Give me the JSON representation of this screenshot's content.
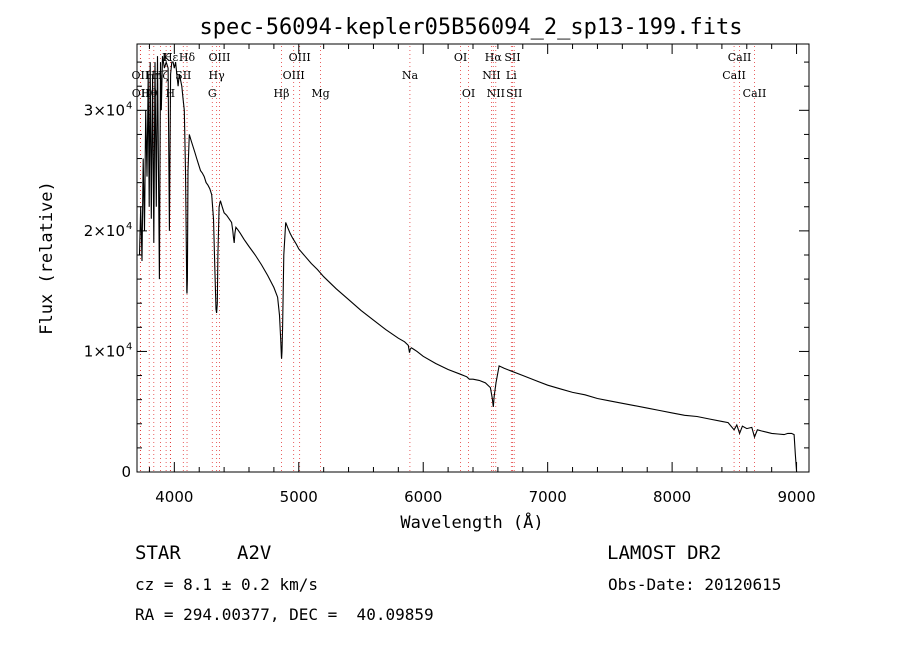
{
  "chart_data": {
    "type": "line",
    "title": "spec-56094-kepler05B56094_2_sp13-199.fits",
    "xlabel": "Wavelength (Å)",
    "ylabel": "Flux (relative)",
    "xlim": [
      3700,
      9100
    ],
    "ylim": [
      0,
      35500
    ],
    "x_ticks": [
      {
        "value": 4000,
        "label": "4000"
      },
      {
        "value": 5000,
        "label": "5000"
      },
      {
        "value": 6000,
        "label": "6000"
      },
      {
        "value": 7000,
        "label": "7000"
      },
      {
        "value": 8000,
        "label": "8000"
      },
      {
        "value": 9000,
        "label": "9000"
      }
    ],
    "y_ticks": [
      {
        "value": 0,
        "mant": "0",
        "exp": ""
      },
      {
        "value": 10000,
        "mant": "1×10",
        "exp": "4"
      },
      {
        "value": 20000,
        "mant": "2×10",
        "exp": "4"
      },
      {
        "value": 30000,
        "mant": "3×10",
        "exp": "4"
      }
    ],
    "series": [
      {
        "name": "spectrum",
        "x": [
          3720,
          3730,
          3740,
          3750,
          3760,
          3770,
          3780,
          3790,
          3798,
          3806,
          3815,
          3825,
          3835,
          3845,
          3855,
          3865,
          3880,
          3889,
          3895,
          3905,
          3920,
          3935,
          3950,
          3960,
          3970,
          3980,
          3990,
          4000,
          4010,
          4020,
          4030,
          4040,
          4050,
          4060,
          4070,
          4080,
          4090,
          4100,
          4102,
          4105,
          4110,
          4120,
          4135,
          4150,
          4165,
          4180,
          4195,
          4210,
          4225,
          4240,
          4255,
          4270,
          4285,
          4300,
          4315,
          4325,
          4335,
          4340,
          4345,
          4350,
          4360,
          4370,
          4385,
          4400,
          4420,
          4440,
          4460,
          4470,
          4475,
          4481,
          4487,
          4495,
          4510,
          4530,
          4560,
          4600,
          4650,
          4700,
          4750,
          4800,
          4830,
          4845,
          4855,
          4860,
          4862,
          4865,
          4870,
          4880,
          4895,
          4910,
          4930,
          4950,
          4980,
          5000,
          5050,
          5100,
          5150,
          5200,
          5300,
          5400,
          5500,
          5600,
          5700,
          5800,
          5850,
          5880,
          5890,
          5896,
          5905,
          5920,
          5950,
          6000,
          6100,
          6200,
          6300,
          6350,
          6370,
          6400,
          6450,
          6500,
          6540,
          6555,
          6563,
          6570,
          6585,
          6610,
          6650,
          6700,
          6800,
          6900,
          7000,
          7100,
          7200,
          7300,
          7400,
          7500,
          7600,
          7700,
          7800,
          7900,
          8000,
          8100,
          8200,
          8300,
          8400,
          8450,
          8498,
          8520,
          8542,
          8565,
          8600,
          8640,
          8662,
          8685,
          8720,
          8760,
          8800,
          8850,
          8900,
          8930,
          8960,
          8980,
          8990,
          9000
        ],
        "values": [
          18000,
          22000,
          17500,
          26000,
          20000,
          30000,
          24500,
          33000,
          22000,
          34000,
          21000,
          33000,
          19000,
          34000,
          22000,
          34500,
          16000,
          34000,
          30000,
          34500,
          33500,
          34000,
          33500,
          20000,
          33000,
          34000,
          34000,
          33500,
          34000,
          33000,
          32000,
          33000,
          32500,
          32000,
          31000,
          30000,
          25000,
          15000,
          14800,
          16000,
          25000,
          28000,
          27500,
          27000,
          26500,
          26000,
          25500,
          25000,
          24800,
          24500,
          24000,
          23800,
          23500,
          23000,
          21000,
          17000,
          13500,
          13200,
          14000,
          18000,
          22000,
          22500,
          22000,
          21500,
          21300,
          21000,
          20700,
          20000,
          19500,
          19000,
          19800,
          20300,
          20100,
          19800,
          19300,
          18700,
          18000,
          17200,
          16300,
          15300,
          14500,
          13000,
          11000,
          9600,
          9400,
          10000,
          12000,
          18000,
          20700,
          20300,
          19800,
          19400,
          18900,
          18500,
          17900,
          17300,
          16800,
          16200,
          15200,
          14300,
          13400,
          12600,
          11800,
          11100,
          10800,
          10500,
          9900,
          10200,
          10300,
          10200,
          10000,
          9600,
          9000,
          8500,
          8100,
          7900,
          7700,
          7700,
          7600,
          7400,
          7000,
          6100,
          5400,
          6300,
          7400,
          8800,
          8600,
          8400,
          8000,
          7600,
          7200,
          6900,
          6600,
          6400,
          6100,
          5900,
          5700,
          5500,
          5300,
          5100,
          4900,
          4700,
          4600,
          4400,
          4200,
          4100,
          3500,
          3900,
          3200,
          3800,
          3600,
          3700,
          2900,
          3500,
          3400,
          3300,
          3200,
          3150,
          3100,
          3200,
          3200,
          3100,
          1500,
          0
        ]
      }
    ],
    "lines": [
      {
        "name": "Hε",
        "wl": 3970,
        "row": 0
      },
      {
        "name": "K",
        "wl": 3934,
        "row": 0
      },
      {
        "name": "Hδ",
        "wl": 4102,
        "row": 0
      },
      {
        "name": "OIII",
        "wl": 4363,
        "row": 0
      },
      {
        "name": "OIII",
        "wl": 5007,
        "row": 0
      },
      {
        "name": "OI",
        "wl": 6300,
        "row": 0
      },
      {
        "name": "Hα",
        "wl": 6563,
        "row": 0
      },
      {
        "name": "SII",
        "wl": 6717,
        "row": 0
      },
      {
        "name": "CaII",
        "wl": 8542,
        "row": 0
      },
      {
        "name": "OII",
        "wl": 3727,
        "row": 1
      },
      {
        "name": "Hη",
        "wl": 3835,
        "row": 1
      },
      {
        "name": "Hζ",
        "wl": 3889,
        "row": 1
      },
      {
        "name": "SII",
        "wl": 4072,
        "row": 1
      },
      {
        "name": "Hγ",
        "wl": 4340,
        "row": 1
      },
      {
        "name": "OIII",
        "wl": 4959,
        "row": 1
      },
      {
        "name": "Na",
        "wl": 5893,
        "row": 1
      },
      {
        "name": "NII",
        "wl": 6548,
        "row": 1
      },
      {
        "name": "Li",
        "wl": 6708,
        "row": 1
      },
      {
        "name": "CaII",
        "wl": 8498,
        "row": 1
      },
      {
        "name": "OII",
        "wl": 3729,
        "row": 2
      },
      {
        "name": "Hθ",
        "wl": 3798,
        "row": 2
      },
      {
        "name": "H",
        "wl": 3968,
        "row": 2
      },
      {
        "name": "G",
        "wl": 4305,
        "row": 2
      },
      {
        "name": "Hβ",
        "wl": 4861,
        "row": 2
      },
      {
        "name": "Mg",
        "wl": 5175,
        "row": 2
      },
      {
        "name": "OI",
        "wl": 6364,
        "row": 2
      },
      {
        "name": "NII",
        "wl": 6583,
        "row": 2
      },
      {
        "name": "SII",
        "wl": 6731,
        "row": 2
      },
      {
        "name": "CaII",
        "wl": 8662,
        "row": 2
      }
    ]
  },
  "info": {
    "object_class": "STAR",
    "subclass": "A2V",
    "survey": "LAMOST DR2",
    "redshift": "cz = 8.1 ± 0.2 km/s",
    "obs_date": "Obs-Date: 20120615",
    "coords": "RA = 294.00377, DEC =  40.09859"
  },
  "colors": {
    "line_marker": "#e23a3a",
    "spectrum": "#000000",
    "frame": "#000000"
  }
}
